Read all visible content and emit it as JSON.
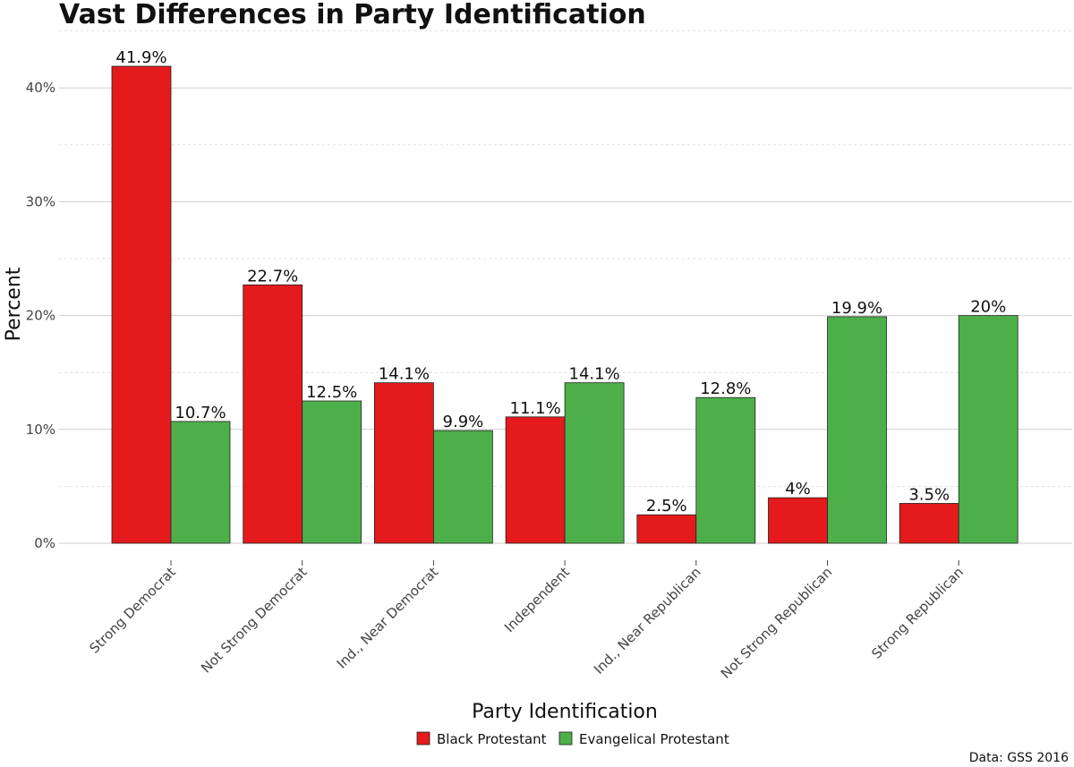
{
  "chart_data": {
    "type": "bar",
    "title": "Vast Differences in Party Identification",
    "xlabel": "Party Identification",
    "ylabel": "Percent",
    "categories": [
      "Strong Democrat",
      "Not Strong Democrat",
      "Ind., Near Democrat",
      "Independent",
      "Ind., Near Republican",
      "Not Strong Republican",
      "Strong Republican"
    ],
    "series": [
      {
        "name": "Black Protestant",
        "color": "#e41a1c",
        "values": [
          41.9,
          22.7,
          14.1,
          11.1,
          2.5,
          4,
          3.5
        ],
        "labels": [
          "41.9%",
          "22.7%",
          "14.1%",
          "11.1%",
          "2.5%",
          "4%",
          "3.5%"
        ]
      },
      {
        "name": "Evangelical Protestant",
        "color": "#4daf4a",
        "values": [
          10.7,
          12.5,
          9.9,
          14.1,
          12.8,
          19.9,
          20
        ],
        "labels": [
          "10.7%",
          "12.5%",
          "9.9%",
          "14.1%",
          "12.8%",
          "19.9%",
          "20%"
        ]
      }
    ],
    "yticks": [
      0,
      10,
      20,
      30,
      40
    ],
    "ytick_labels": [
      "0%",
      "10%",
      "20%",
      "30%",
      "40%"
    ],
    "ylim": [
      0,
      45
    ],
    "grid": true,
    "legend_position": "bottom",
    "caption": "Data: GSS 2016"
  }
}
